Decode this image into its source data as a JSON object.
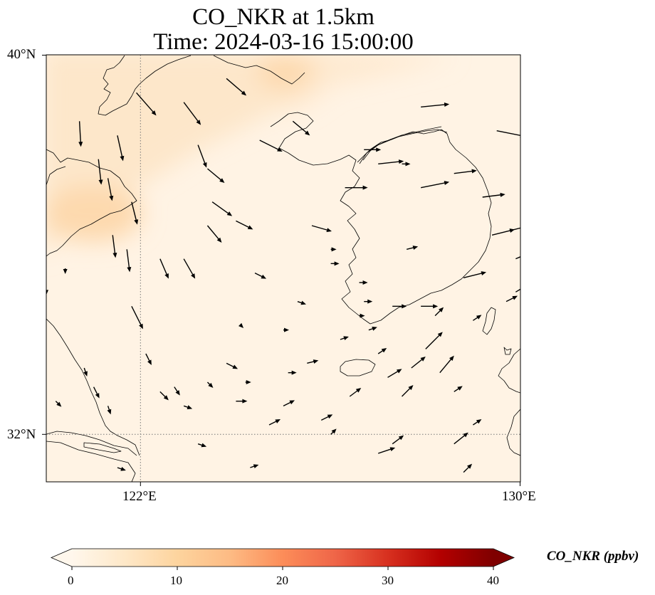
{
  "title": {
    "line1": "CO_NKR at 1.5km",
    "line2": "Time: 2024-03-16 15:00:00"
  },
  "map": {
    "projection": "PlateCarree",
    "lon_range": [
      120.0,
      130.0
    ],
    "lat_range": [
      31.0,
      40.0
    ],
    "field": "CO_NKR",
    "level": "1.5km",
    "gridlines": [
      {
        "type": "meridian",
        "value": 122
      },
      {
        "type": "parallel",
        "value": 32
      }
    ],
    "coastline_color": "#000000",
    "field_colors": {
      "background": "#fff3e4",
      "land_band": "#fde6c8",
      "peak": "#fdd9ae"
    }
  },
  "axes": {
    "lat_ticks": [
      "40°N",
      "32°N"
    ],
    "lon_ticks": [
      "122°E",
      "130°E"
    ]
  },
  "colorbar": {
    "label": "CO_NKR (ppbv)",
    "ticks": [
      "0",
      "10",
      "20",
      "30",
      "40"
    ],
    "range": [
      0,
      40
    ],
    "extend": "both",
    "colormap": "OrRd",
    "colors": [
      "#fff7ec",
      "#fee8c8",
      "#fdd49e",
      "#fdbb84",
      "#fc8d59",
      "#ef6548",
      "#d7301f",
      "#b30000",
      "#7f0000"
    ]
  },
  "wind_vectors": [
    [
      120.7,
      38.6,
      0.05,
      -0.9
    ],
    [
      121.1,
      37.8,
      0.1,
      -0.9
    ],
    [
      121.9,
      39.2,
      0.7,
      -0.8
    ],
    [
      121.5,
      38.3,
      0.2,
      -0.9
    ],
    [
      121.3,
      37.4,
      0.15,
      -0.8
    ],
    [
      121.8,
      36.9,
      0.2,
      -0.8
    ],
    [
      122.9,
      39.0,
      0.6,
      -0.8
    ],
    [
      123.2,
      38.1,
      0.3,
      -0.8
    ],
    [
      123.8,
      39.5,
      0.7,
      -0.6
    ],
    [
      123.4,
      37.6,
      0.6,
      -0.5
    ],
    [
      123.4,
      36.4,
      0.5,
      -0.6
    ],
    [
      122.9,
      35.7,
      0.4,
      -0.7
    ],
    [
      123.5,
      36.9,
      0.7,
      -0.5
    ],
    [
      122.4,
      35.7,
      0.3,
      -0.7
    ],
    [
      121.8,
      34.7,
      0.4,
      -0.8
    ],
    [
      121.4,
      36.2,
      0.1,
      -0.8
    ],
    [
      121.7,
      35.9,
      0.1,
      -0.8
    ],
    [
      124.5,
      38.2,
      0.8,
      -0.4
    ],
    [
      124.0,
      36.5,
      0.6,
      -0.3
    ],
    [
      124.4,
      35.4,
      0.4,
      -0.2
    ],
    [
      125.2,
      38.6,
      0.6,
      -0.5
    ],
    [
      125.6,
      36.4,
      0.7,
      -0.2
    ],
    [
      126.3,
      37.2,
      0.8,
      0.0
    ],
    [
      127.0,
      37.7,
      0.9,
      0.1
    ],
    [
      127.9,
      38.9,
      1.0,
      0.1
    ],
    [
      129.5,
      38.4,
      1.0,
      -0.2
    ],
    [
      130.4,
      38.5,
      1.0,
      0.1
    ],
    [
      126.7,
      38.0,
      0.6,
      0.0
    ],
    [
      127.9,
      37.2,
      1.0,
      0.2
    ],
    [
      128.6,
      37.5,
      0.8,
      0.1
    ],
    [
      129.2,
      37.0,
      0.8,
      0.1
    ],
    [
      129.4,
      36.2,
      0.8,
      0.2
    ],
    [
      128.8,
      35.3,
      0.8,
      0.2
    ],
    [
      129.8,
      36.3,
      0.8,
      0.2
    ],
    [
      129.9,
      35.7,
      0.7,
      0.3
    ],
    [
      129.9,
      35.0,
      0.5,
      0.3
    ],
    [
      130.4,
      34.6,
      0.4,
      0.2
    ],
    [
      129.7,
      34.8,
      0.4,
      0.2
    ],
    [
      127.6,
      35.9,
      0.4,
      0.1
    ],
    [
      126.0,
      35.6,
      0.3,
      0.0
    ],
    [
      126.0,
      35.9,
      0.2,
      0.0
    ],
    [
      127.3,
      34.7,
      0.5,
      0.0
    ],
    [
      127.9,
      34.7,
      0.6,
      0.0
    ],
    [
      126.7,
      34.8,
      0.3,
      0.0
    ],
    [
      126.6,
      34.5,
      0.2,
      0.0
    ],
    [
      126.2,
      34.0,
      0.3,
      0.1
    ],
    [
      126.8,
      34.2,
      0.3,
      0.1
    ],
    [
      127.2,
      33.2,
      0.5,
      0.3
    ],
    [
      127.7,
      33.4,
      0.5,
      0.4
    ],
    [
      127.0,
      33.7,
      0.3,
      0.2
    ],
    [
      125.1,
      33.3,
      0.3,
      0.0
    ],
    [
      124.2,
      33.1,
      0.2,
      0.0
    ],
    [
      123.8,
      33.5,
      0.4,
      -0.2
    ],
    [
      123.4,
      33.1,
      0.2,
      -0.2
    ],
    [
      122.7,
      33.0,
      0.2,
      -0.3
    ],
    [
      122.4,
      32.9,
      0.3,
      -0.3
    ],
    [
      122.1,
      33.7,
      0.2,
      -0.4
    ],
    [
      122.9,
      32.6,
      0.3,
      -0.1
    ],
    [
      124.0,
      32.7,
      0.4,
      0.0
    ],
    [
      123.2,
      31.8,
      0.3,
      -0.1
    ],
    [
      124.3,
      31.3,
      0.3,
      0.1
    ],
    [
      124.7,
      32.2,
      0.4,
      0.2
    ],
    [
      125.0,
      32.6,
      0.4,
      0.2
    ],
    [
      125.5,
      33.5,
      0.4,
      0.1
    ],
    [
      125.8,
      32.3,
      0.4,
      0.2
    ],
    [
      126.4,
      32.8,
      0.4,
      0.3
    ],
    [
      127.3,
      31.8,
      0.4,
      0.3
    ],
    [
      127.5,
      32.8,
      0.4,
      0.4
    ],
    [
      128.0,
      33.8,
      0.6,
      0.6
    ],
    [
      128.3,
      33.3,
      0.5,
      0.6
    ],
    [
      128.6,
      32.9,
      0.3,
      0.2
    ],
    [
      128.8,
      31.2,
      0.3,
      0.3
    ],
    [
      129.0,
      34.4,
      0.3,
      0.2
    ],
    [
      128.2,
      34.5,
      0.3,
      0.3
    ],
    [
      128.6,
      31.8,
      0.5,
      0.4
    ],
    [
      129.0,
      32.2,
      0.3,
      0.2
    ],
    [
      130.2,
      32.3,
      0.2,
      0.2
    ],
    [
      127.0,
      31.6,
      0.6,
      0.2
    ],
    [
      121.0,
      33.0,
      0.2,
      -0.4
    ],
    [
      121.3,
      32.6,
      0.1,
      -0.3
    ],
    [
      120.8,
      33.4,
      0.1,
      -0.3
    ],
    [
      121.9,
      31.0,
      0.2,
      -0.2
    ],
    [
      120.2,
      32.7,
      0.2,
      -0.2
    ],
    [
      121.5,
      31.3,
      0.3,
      -0.1
    ],
    [
      124.1,
      34.3,
      0.1,
      -0.1
    ],
    [
      125.0,
      34.2,
      0.2,
      0.0
    ],
    [
      126.6,
      35.2,
      0.3,
      0.0
    ],
    [
      127.5,
      37.7,
      0.3,
      0.0
    ],
    [
      125.3,
      34.8,
      0.3,
      -0.1
    ],
    [
      126.0,
      32.0,
      0.2,
      0.2
    ],
    [
      120.4,
      35.5,
      0.0,
      -0.2
    ],
    [
      120.0,
      35.0,
      0.0,
      -0.1
    ]
  ]
}
